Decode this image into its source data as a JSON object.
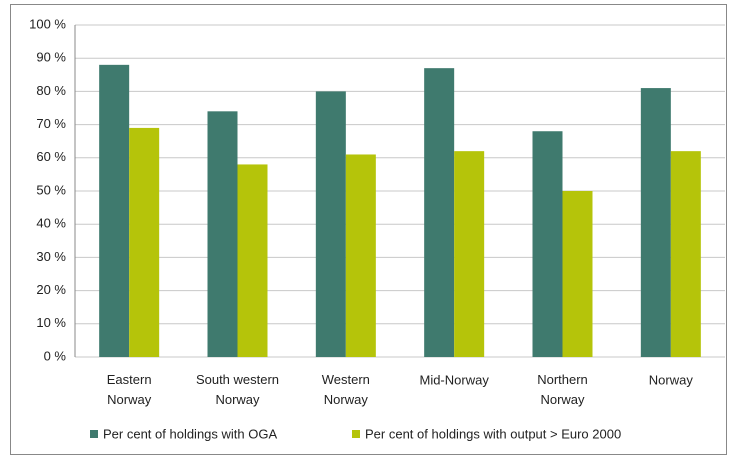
{
  "chart_data": {
    "type": "bar",
    "categories": [
      "Eastern Norway",
      "South western Norway",
      "Western Norway",
      "Mid-Norway",
      "Northern Norway",
      "Norway"
    ],
    "series": [
      {
        "name": "Per cent of holdings with OGA",
        "color": "#3f7a6e",
        "values": [
          88,
          74,
          80,
          87,
          68,
          81
        ]
      },
      {
        "name": "Per cent of holdings with output > Euro 2000",
        "color": "#b5c40a",
        "values": [
          69,
          58,
          61,
          62,
          50,
          62
        ]
      }
    ],
    "ylim": [
      0,
      100
    ],
    "yticks": [
      {
        "value": 0,
        "label": "0 %"
      },
      {
        "value": 10,
        "label": "10 %"
      },
      {
        "value": 20,
        "label": "20 %"
      },
      {
        "value": 30,
        "label": "30 %"
      },
      {
        "value": 40,
        "label": "40 %"
      },
      {
        "value": 50,
        "label": "50 %"
      },
      {
        "value": 60,
        "label": "60 %"
      },
      {
        "value": 70,
        "label": "70 %"
      },
      {
        "value": 80,
        "label": "80 %"
      },
      {
        "value": 90,
        "label": "90 %"
      },
      {
        "value": 100,
        "label": "100 %"
      }
    ],
    "grid": true,
    "legend": "bottom"
  }
}
